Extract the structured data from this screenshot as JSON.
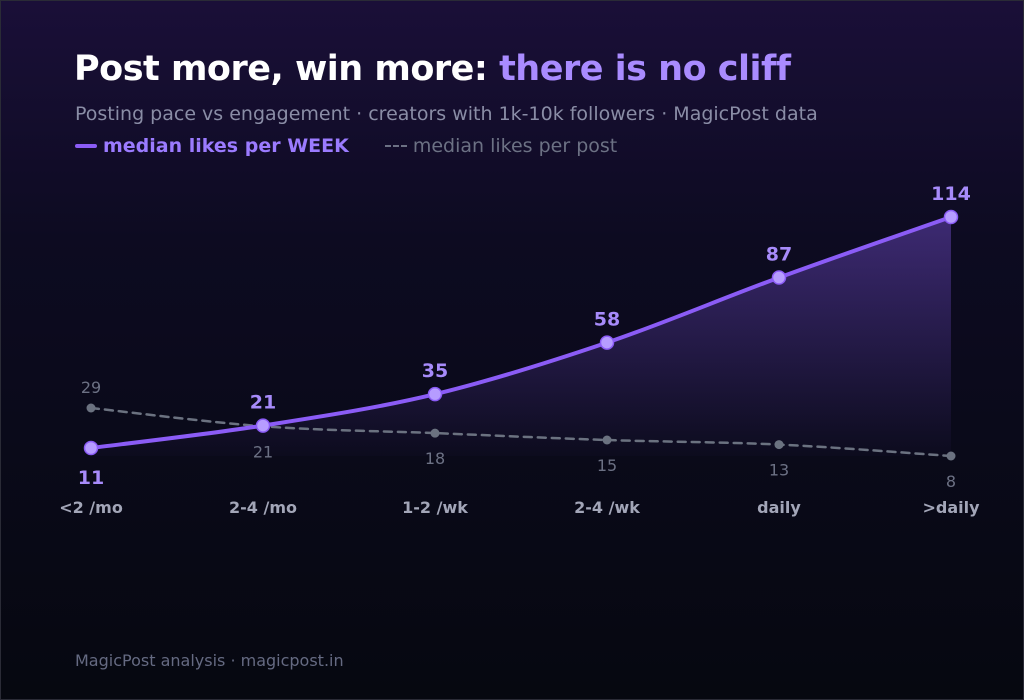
{
  "header": {
    "title_main": "Post more, win more: ",
    "title_accent": "there is no cliff",
    "subtitle": "Posting pace vs engagement · creators with 1k-10k followers · MagicPost data"
  },
  "footer": {
    "source": "MagicPost analysis · magicpost.in"
  },
  "colors": {
    "primary": "#8b5cf6",
    "primary_label": "#a78bfa",
    "secondary": "#6b7280",
    "secondary_label": "#6c7184",
    "axis_label": "#a3a6b8"
  },
  "chart_data": {
    "type": "line",
    "title": "Post more, win more: there is no cliff",
    "categories": [
      "<2 /mo",
      "2-4 /mo",
      "1-2 /wk",
      "2-4 /wk",
      "daily",
      ">daily"
    ],
    "series": [
      {
        "name": "median likes per WEEK",
        "style": "solid",
        "values": [
          11,
          21,
          35,
          58,
          87,
          114
        ]
      },
      {
        "name": "median likes per post",
        "style": "dashed",
        "values": [
          29,
          21,
          18,
          15,
          13,
          8
        ]
      }
    ],
    "ylim": [
      0,
      114
    ],
    "grid": false,
    "legend_position": "top-left"
  }
}
